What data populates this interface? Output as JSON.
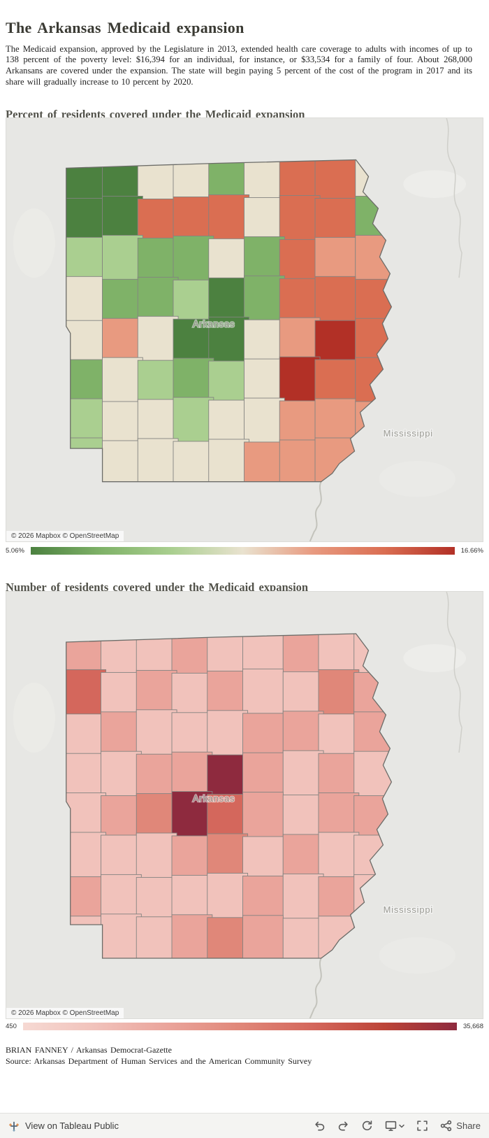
{
  "header": {
    "title": "The Arkansas Medicaid expansion",
    "intro": "The Medicaid expansion, approved by the Legislature in 2013, extended health care coverage to adults with incomes of up to 138 percent of the poverty level: $16,394 for an individual, for instance, or $33,534 for a family of four. About 268,000 Arkansans are covered under the expansion. The state will begin paying 5 percent of the cost of the program in 2017 and its share will gradually increase to 10 percent by 2020."
  },
  "maps": [
    {
      "heading": "Percent of residents covered under the Medicaid expansion",
      "type": "choropleth",
      "state_label": "Arkansas",
      "neighbor_label": "Mississippi",
      "attribution": "© 2026 Mapbox  © OpenStreetMap",
      "legend": {
        "min": "5.06%",
        "max": "16.66%"
      },
      "palette": [
        "#4c8140",
        "#7fb268",
        "#aacf90",
        "#e9e2cf",
        "#e89a80",
        "#da6e52",
        "#b23026"
      ],
      "grid": [
        [
          0,
          0,
          3,
          3,
          1,
          3,
          5,
          5,
          3
        ],
        [
          0,
          0,
          5,
          5,
          5,
          3,
          5,
          5,
          1
        ],
        [
          2,
          2,
          1,
          1,
          3,
          1,
          5,
          4,
          4
        ],
        [
          3,
          1,
          1,
          2,
          0,
          1,
          5,
          5,
          5
        ],
        [
          3,
          4,
          3,
          0,
          0,
          3,
          4,
          6,
          5
        ],
        [
          1,
          3,
          2,
          1,
          2,
          3,
          6,
          5,
          5
        ],
        [
          2,
          3,
          3,
          2,
          3,
          3,
          4,
          4,
          4
        ],
        [
          2,
          3,
          3,
          3,
          3,
          4,
          4,
          4,
          4
        ]
      ]
    },
    {
      "heading": "Number of residents covered under the Medicaid expansion",
      "type": "choropleth",
      "state_label": "Arkansas",
      "neighbor_label": "Mississippi",
      "attribution": "© 2026 Mapbox  © OpenStreetMap",
      "legend": {
        "min": "450",
        "max": "35,668"
      },
      "palette": [
        "#f6d9d3",
        "#f1c2bb",
        "#eaa49b",
        "#e08779",
        "#d4675c",
        "#bc4438",
        "#8e2a3e"
      ],
      "grid": [
        [
          2,
          1,
          1,
          2,
          1,
          1,
          2,
          1,
          1
        ],
        [
          4,
          1,
          2,
          1,
          2,
          1,
          1,
          3,
          2
        ],
        [
          1,
          2,
          1,
          1,
          1,
          2,
          2,
          1,
          2
        ],
        [
          1,
          1,
          2,
          2,
          6,
          2,
          1,
          2,
          1
        ],
        [
          1,
          2,
          3,
          6,
          4,
          2,
          1,
          2,
          2
        ],
        [
          1,
          1,
          1,
          2,
          3,
          1,
          2,
          1,
          1
        ],
        [
          2,
          1,
          1,
          1,
          1,
          2,
          1,
          2,
          1
        ],
        [
          1,
          1,
          1,
          2,
          3,
          2,
          1,
          1,
          1
        ]
      ]
    }
  ],
  "credits": {
    "byline": "BRIAN FANNEY / Arkansas Democrat-Gazette",
    "source": "Source: Arkansas Department of Human Services and the American Community Survey"
  },
  "toolbar": {
    "view_on": "View on Tableau Public",
    "share": "Share"
  }
}
